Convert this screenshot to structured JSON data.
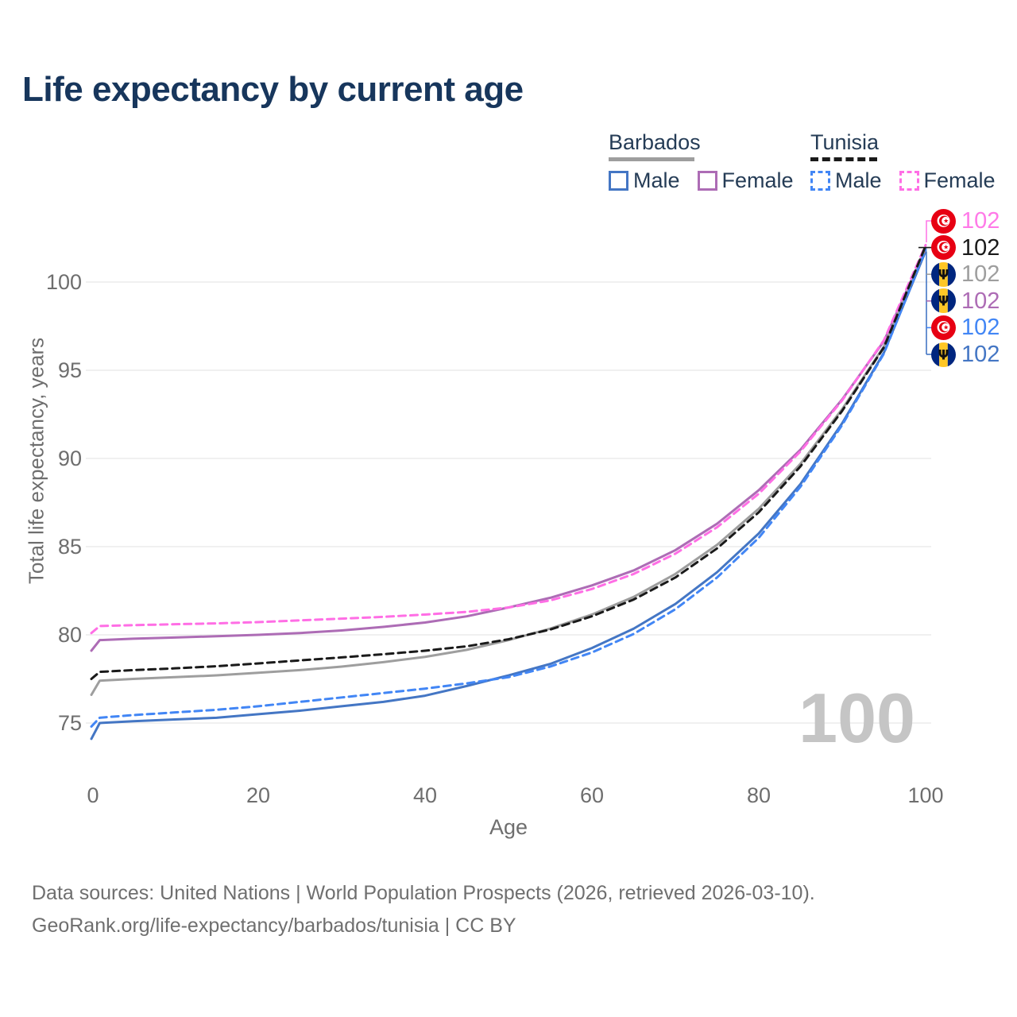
{
  "title": "Life expectancy by current age",
  "legend": {
    "groups": [
      {
        "label": "Barbados",
        "underline_style": "solid",
        "underline_color": "#9e9e9e",
        "items": [
          {
            "label": "Male",
            "color": "#4476c4",
            "dashed": false
          },
          {
            "label": "Female",
            "color": "#ad6cb5",
            "dashed": false
          }
        ]
      },
      {
        "label": "Tunisia",
        "underline_style": "dashed",
        "underline_color": "#1a1a1a",
        "items": [
          {
            "label": "Male",
            "color": "#4286f5",
            "dashed": true
          },
          {
            "label": "Female",
            "color": "#ff6ee5",
            "dashed": true
          }
        ]
      }
    ]
  },
  "chart_data": {
    "type": "line",
    "title": "Life expectancy by current age",
    "xlabel": "Age",
    "ylabel": "Total life expectancy, years",
    "x_ticks": [
      0,
      20,
      40,
      60,
      80,
      100
    ],
    "y_ticks": [
      75,
      80,
      85,
      90,
      95,
      100
    ],
    "xlim": [
      0,
      100
    ],
    "ylim": [
      73.5,
      103
    ],
    "grid": "horizontal-only",
    "gridline_color": "#ebebeb",
    "ages": [
      0,
      1,
      5,
      10,
      15,
      20,
      25,
      30,
      35,
      40,
      45,
      50,
      55,
      60,
      65,
      70,
      75,
      80,
      85,
      90,
      95,
      100
    ],
    "series": [
      {
        "name": "Barbados Male",
        "country": "Barbados",
        "sex": "Male",
        "color": "#4476c4",
        "dashed": false,
        "values": [
          74.1,
          75.0,
          75.1,
          75.2,
          75.3,
          75.5,
          75.7,
          75.95,
          76.2,
          76.55,
          77.1,
          77.7,
          78.35,
          79.25,
          80.35,
          81.75,
          83.55,
          85.75,
          88.55,
          92.0,
          96.0,
          101.75
        ]
      },
      {
        "name": "Barbados Female",
        "country": "Barbados",
        "sex": "Female",
        "color": "#ad6cb5",
        "dashed": false,
        "values": [
          79.1,
          79.7,
          79.78,
          79.85,
          79.92,
          80.0,
          80.1,
          80.25,
          80.45,
          80.7,
          81.05,
          81.55,
          82.1,
          82.8,
          83.65,
          84.8,
          86.3,
          88.2,
          90.5,
          93.35,
          96.65,
          101.9
        ]
      },
      {
        "name": "Barbados Total",
        "country": "Barbados",
        "sex": "Total",
        "color": "#9e9e9e",
        "dashed": false,
        "values": [
          76.6,
          77.4,
          77.5,
          77.6,
          77.7,
          77.85,
          78.0,
          78.2,
          78.45,
          78.75,
          79.15,
          79.7,
          80.35,
          81.15,
          82.15,
          83.45,
          85.1,
          87.15,
          89.7,
          92.8,
          96.35,
          101.95
        ]
      },
      {
        "name": "Tunisia Male",
        "country": "Tunisia",
        "sex": "Male",
        "color": "#4286f5",
        "dashed": true,
        "values": [
          74.8,
          75.3,
          75.45,
          75.6,
          75.75,
          75.95,
          76.2,
          76.45,
          76.7,
          76.95,
          77.25,
          77.6,
          78.2,
          79.0,
          80.05,
          81.45,
          83.25,
          85.5,
          88.4,
          91.9,
          95.95,
          101.85
        ]
      },
      {
        "name": "Tunisia Female",
        "country": "Tunisia",
        "sex": "Female",
        "color": "#ff6ee5",
        "dashed": true,
        "values": [
          80.1,
          80.5,
          80.55,
          80.6,
          80.65,
          80.72,
          80.82,
          80.92,
          81.02,
          81.15,
          81.3,
          81.55,
          81.95,
          82.6,
          83.45,
          84.6,
          86.1,
          88.0,
          90.4,
          93.3,
          96.7,
          102.1
        ]
      },
      {
        "name": "Tunisia Total",
        "country": "Tunisia",
        "sex": "Total",
        "color": "#1a1a1a",
        "dashed": true,
        "values": [
          77.5,
          77.9,
          78.0,
          78.1,
          78.22,
          78.38,
          78.55,
          78.72,
          78.9,
          79.1,
          79.35,
          79.75,
          80.3,
          81.05,
          82.0,
          83.25,
          84.9,
          86.95,
          89.55,
          92.7,
          96.3,
          102.05
        ]
      }
    ],
    "end_labels": [
      {
        "flag": "tunisia",
        "series": "Tunisia Female",
        "value": "102",
        "color": "#ff7ae8"
      },
      {
        "flag": "tunisia",
        "series": "Tunisia Total",
        "value": "102",
        "color": "#1a1a1a"
      },
      {
        "flag": "barbados",
        "series": "Barbados Total",
        "value": "102",
        "color": "#9e9e9e"
      },
      {
        "flag": "barbados",
        "series": "Barbados Female",
        "value": "102",
        "color": "#ad6cb5"
      },
      {
        "flag": "tunisia",
        "series": "Tunisia Male",
        "value": "102",
        "color": "#4286f5"
      },
      {
        "flag": "barbados",
        "series": "Barbados Male",
        "value": "102",
        "color": "#4476c4"
      }
    ]
  },
  "age_indicator": "100",
  "footer": {
    "line1": "Data sources: United Nations | World Population Prospects (2026, retrieved 2026-03-10).",
    "line2": "GeoRank.org/life-expectancy/barbados/tunisia | CC BY"
  }
}
